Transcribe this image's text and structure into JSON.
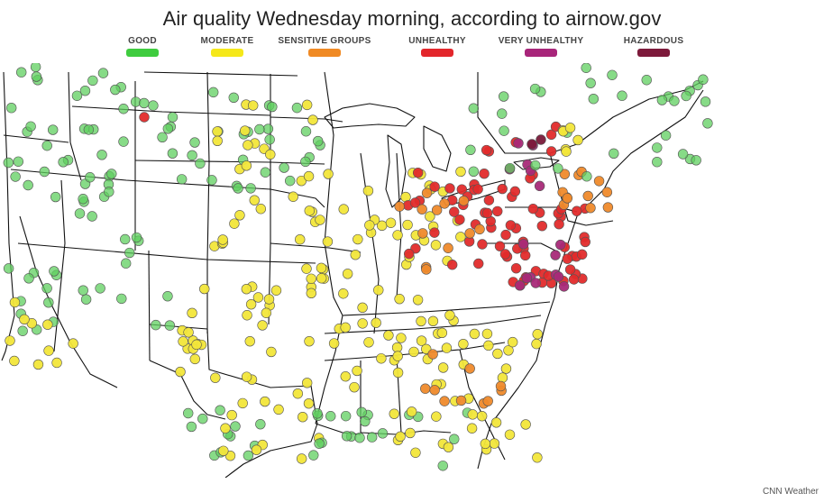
{
  "header": {
    "title": "Air quality Wednesday morning, according to airnow.gov"
  },
  "legend": [
    {
      "label": "GOOD",
      "color": "#3fcc3f"
    },
    {
      "label": "MODERATE",
      "color": "#f5e81a"
    },
    {
      "label": "SENSITIVE GROUPS",
      "color": "#f08a24"
    },
    {
      "label": "UNHEALTHY",
      "color": "#e3262b"
    },
    {
      "label": "VERY UNHEALTHY",
      "color": "#a8257a"
    },
    {
      "label": "HAZARDOUS",
      "color": "#7d1a3b"
    }
  ],
  "footer": {
    "credit": "CNN Weather"
  },
  "map": {
    "region": "contiguous-us-central-east",
    "colors": {
      "good": "#5fcf5f",
      "moderate": "#f2e63a",
      "sensitive": "#ef8a2b",
      "unhealthy": "#e12b2b",
      "very_unhealthy": "#a82a78",
      "hazardous": "#7a1a3a",
      "border": "#111111"
    }
  }
}
